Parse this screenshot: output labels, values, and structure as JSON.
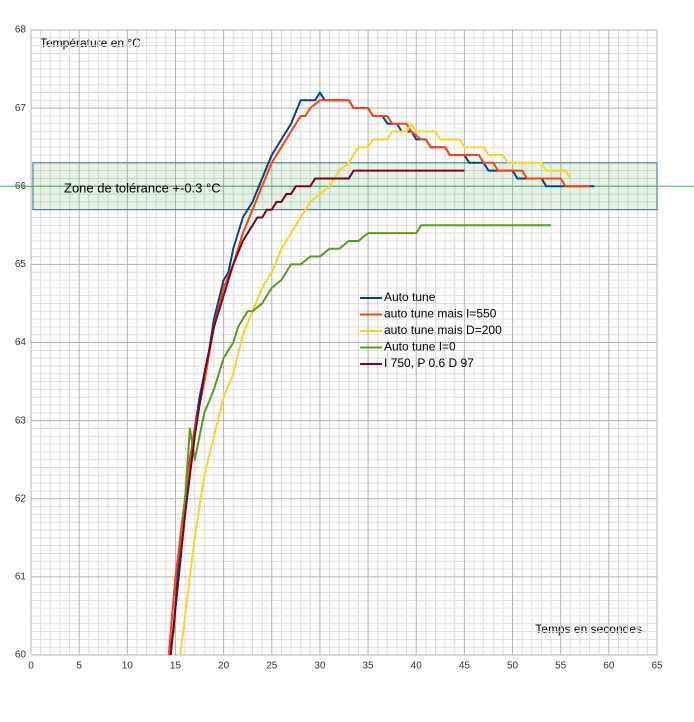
{
  "chart_data": {
    "type": "line",
    "y_label": "Température en °C",
    "x_label": "Temps en secondes",
    "xlim": [
      0,
      65
    ],
    "xticks": [
      0,
      5,
      10,
      15,
      20,
      25,
      30,
      35,
      40,
      45,
      50,
      55,
      60,
      65
    ],
    "ylim": [
      60,
      68
    ],
    "yticks": [
      60,
      61,
      62,
      63,
      64,
      65,
      66,
      67,
      68
    ],
    "grid": true,
    "x_minor_divisions": 5,
    "y_minor_divisions": 10,
    "legend_position": "center",
    "tolerance_band": {
      "label": "Zone de tolérance +-0.3 °C",
      "ymin": 65.7,
      "ymax": 66.3,
      "xmin": 0.2,
      "xmax": 65,
      "line": 66.0,
      "color": "#4caf50"
    },
    "series": [
      {
        "name": "Auto tune",
        "color": "#004586",
        "x": [
          14.5,
          14.8,
          15.5,
          16.5,
          17.5,
          18.5,
          19,
          20,
          20.5,
          21,
          22,
          23,
          24,
          25,
          26,
          27,
          28,
          29.5,
          30,
          30.5,
          33,
          33.5,
          35,
          35.5,
          36.5,
          37,
          38,
          38.5,
          39.5,
          40,
          41,
          41.5,
          43,
          43.5,
          45,
          45.5,
          47,
          47.5,
          50,
          50.5,
          53,
          53.5,
          58.5
        ],
        "values": [
          60.1,
          60.3,
          61.5,
          62.5,
          63.3,
          63.9,
          64.3,
          64.8,
          64.9,
          65.2,
          65.6,
          65.8,
          66.1,
          66.4,
          66.6,
          66.8,
          67.1,
          67.1,
          67.2,
          67.1,
          67.1,
          67.0,
          67.0,
          66.9,
          66.9,
          66.8,
          66.8,
          66.7,
          66.7,
          66.6,
          66.6,
          66.5,
          66.5,
          66.4,
          66.4,
          66.3,
          66.3,
          66.2,
          66.2,
          66.1,
          66.1,
          66.0,
          66.0
        ]
      },
      {
        "name": "auto tune mais I=550",
        "color": "#ff420e",
        "x": [
          14.3,
          15,
          16,
          17,
          18,
          19,
          20,
          21,
          22,
          23,
          24,
          25,
          26,
          27,
          28,
          28.5,
          29,
          30,
          33,
          33.5,
          35,
          35.5,
          37,
          37.5,
          39,
          39.5,
          40.5,
          41,
          41.5,
          43,
          43.5,
          46.5,
          47,
          48,
          48.5,
          51,
          51.5,
          55,
          55.5,
          58
        ],
        "values": [
          60.0,
          61.0,
          62.0,
          62.9,
          63.5,
          64.2,
          64.7,
          65.0,
          65.4,
          65.7,
          66.0,
          66.3,
          66.5,
          66.7,
          66.9,
          66.9,
          67.0,
          67.1,
          67.1,
          67.0,
          67.0,
          66.9,
          66.9,
          66.8,
          66.8,
          66.7,
          66.6,
          66.6,
          66.5,
          66.5,
          66.4,
          66.4,
          66.3,
          66.3,
          66.2,
          66.2,
          66.1,
          66.1,
          66.0,
          66.0
        ]
      },
      {
        "name": "auto tune mais D=200",
        "color": "#ffd320",
        "x": [
          15.5,
          16,
          17,
          18,
          19,
          20,
          21,
          22,
          23,
          24,
          25,
          26,
          27,
          28,
          29,
          30,
          31,
          32,
          33,
          34,
          35,
          35.5,
          37,
          37.5,
          39,
          39.5,
          40,
          42,
          42.5,
          44.5,
          45,
          47,
          47.5,
          49,
          49.5,
          53,
          53.5,
          55.5,
          56
        ],
        "values": [
          60.0,
          60.5,
          61.5,
          62.3,
          62.8,
          63.3,
          63.6,
          64.1,
          64.4,
          64.7,
          64.9,
          65.2,
          65.4,
          65.6,
          65.8,
          65.9,
          66.0,
          66.2,
          66.3,
          66.5,
          66.5,
          66.6,
          66.6,
          66.7,
          66.7,
          66.8,
          66.7,
          66.7,
          66.6,
          66.6,
          66.5,
          66.5,
          66.4,
          66.4,
          66.3,
          66.3,
          66.2,
          66.2,
          66.1
        ]
      },
      {
        "name": "Auto tune I=0",
        "color": "#579d1c",
        "x": [
          14.5,
          15.5,
          16,
          16.5,
          17,
          18,
          19,
          20,
          21,
          21.5,
          22,
          22.5,
          23,
          24,
          25,
          26,
          27,
          28,
          29,
          30,
          31,
          32,
          33,
          34,
          35,
          40,
          40.5,
          54
        ],
        "values": [
          60.0,
          61.2,
          62.0,
          62.9,
          62.5,
          63.1,
          63.4,
          63.8,
          64.0,
          64.2,
          64.3,
          64.4,
          64.4,
          64.5,
          64.7,
          64.8,
          65.0,
          65.0,
          65.1,
          65.1,
          65.2,
          65.2,
          65.3,
          65.3,
          65.4,
          65.4,
          65.5,
          65.5
        ]
      },
      {
        "name": "I 750, P 0.6 D 97",
        "color": "#7e0021",
        "x": [
          14.5,
          16,
          17,
          18,
          19,
          20,
          21,
          22,
          23,
          23.5,
          24,
          24.5,
          25,
          25.5,
          26,
          26.5,
          27,
          27.5,
          29,
          29.5,
          33,
          33.5,
          45
        ],
        "values": [
          60.0,
          61.8,
          62.8,
          63.6,
          64.2,
          64.6,
          65.0,
          65.3,
          65.5,
          65.6,
          65.6,
          65.7,
          65.7,
          65.8,
          65.8,
          65.9,
          65.9,
          66.0,
          66.0,
          66.1,
          66.1,
          66.2,
          66.2
        ]
      }
    ]
  }
}
